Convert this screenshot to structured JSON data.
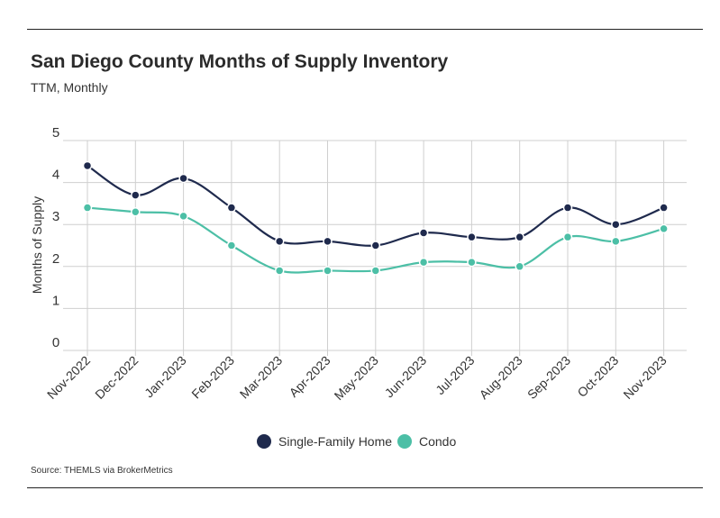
{
  "colors": {
    "single_family": "#1f2a4d",
    "condo": "#4cbfa6",
    "grid": "#cfcfcf",
    "text": "#333333"
  },
  "chart_data": {
    "type": "line",
    "title": "San Diego County Months of Supply Inventory",
    "subtitle": "TTM, Monthly",
    "xlabel": "",
    "ylabel": "Months of Supply",
    "ylim": [
      0,
      5
    ],
    "yticks": [
      "0",
      "1",
      "2",
      "3",
      "4",
      "5"
    ],
    "grid": true,
    "legend_position": "bottom",
    "categories": [
      "Nov-2022",
      "Dec-2022",
      "Jan-2023",
      "Feb-2023",
      "Mar-2023",
      "Apr-2023",
      "May-2023",
      "Jun-2023",
      "Jul-2023",
      "Aug-2023",
      "Sep-2023",
      "Oct-2023",
      "Nov-2023"
    ],
    "series": [
      {
        "name": "Single-Family Home",
        "color": "#1f2a4d",
        "values": [
          4.4,
          3.7,
          4.1,
          3.4,
          2.6,
          2.6,
          2.5,
          2.8,
          2.7,
          2.7,
          3.4,
          3.0,
          3.4
        ]
      },
      {
        "name": "Condo",
        "color": "#4cbfa6",
        "values": [
          3.4,
          3.3,
          3.2,
          2.5,
          1.9,
          1.9,
          1.9,
          2.1,
          2.1,
          2.0,
          2.7,
          2.6,
          2.9
        ]
      }
    ]
  },
  "source": "Source:  THEMLS via BrokerMetrics"
}
